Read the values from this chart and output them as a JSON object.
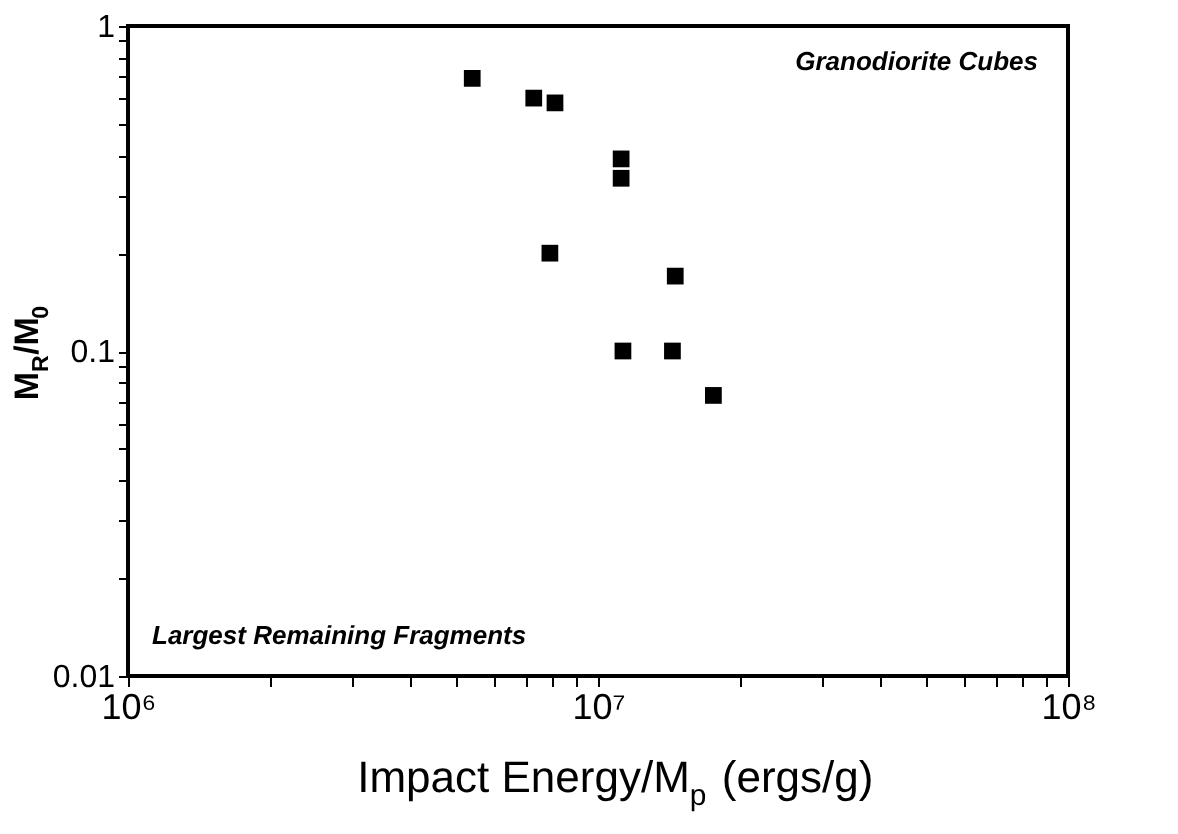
{
  "chart_data": {
    "type": "scatter",
    "xlabel": "Impact Energy/M$_{p}$ (ergs/g)",
    "ylabel": "M$_{R}$/M$_{0}$",
    "annotations": [
      "Granodiorite Cubes",
      "Largest Remaining Fragments"
    ],
    "x": [
      5400000.0,
      7300000.0,
      8100000.0,
      11200000.0,
      11200000.0,
      7900000.0,
      14600000.0,
      11300000.0,
      14400000.0,
      17600000.0
    ],
    "series": [
      {
        "color": "#000000",
        "values": [
          0.69,
          0.6,
          0.58,
          0.39,
          0.34,
          0.2,
          0.17,
          0.1,
          0.1,
          0.073
        ]
      }
    ],
    "log": "xy",
    "marker": "square",
    "grid": false,
    "xlim": [
      1000000,
      100000000
    ],
    "ylim": [
      0.01,
      1
    ],
    "xticks": [
      {
        "value": 1000000,
        "label": "10⁶"
      },
      {
        "value": 2000000,
        "label": null
      },
      {
        "value": 3000000,
        "label": null
      },
      {
        "value": 4000000,
        "label": null
      },
      {
        "value": 5000000,
        "label": null
      },
      {
        "value": 6000000,
        "label": null
      },
      {
        "value": 7000000,
        "label": null
      },
      {
        "value": 8000000,
        "label": null
      },
      {
        "value": 9000000,
        "label": null
      },
      {
        "value": 10000000,
        "label": "10⁷"
      },
      {
        "value": 20000000,
        "label": null
      },
      {
        "value": 30000000,
        "label": null
      },
      {
        "value": 40000000,
        "label": null
      },
      {
        "value": 50000000,
        "label": null
      },
      {
        "value": 60000000,
        "label": null
      },
      {
        "value": 70000000,
        "label": null
      },
      {
        "value": 80000000,
        "label": null
      },
      {
        "value": 90000000,
        "label": null
      },
      {
        "value": 100000000,
        "label": "10⁸"
      }
    ],
    "yticks": [
      0.01,
      {
        "value": 0.02,
        "label": null
      },
      {
        "value": 0.03,
        "label": null
      },
      {
        "value": 0.04,
        "label": null
      },
      {
        "value": 0.05,
        "label": null
      },
      {
        "value": 0.06,
        "label": null
      },
      {
        "value": 0.07,
        "label": null
      },
      {
        "value": 0.08,
        "label": null
      },
      {
        "value": 0.09,
        "label": null
      },
      0.1,
      {
        "value": 0.2,
        "label": null
      },
      {
        "value": 0.3,
        "label": null
      },
      {
        "value": 0.4,
        "label": null
      },
      {
        "value": 0.5,
        "label": null
      },
      {
        "value": 0.6,
        "label": null
      },
      {
        "value": 0.7,
        "label": null
      },
      {
        "value": 0.8,
        "label": null
      },
      {
        "value": 0.9,
        "label": null
      },
      1
    ]
  }
}
